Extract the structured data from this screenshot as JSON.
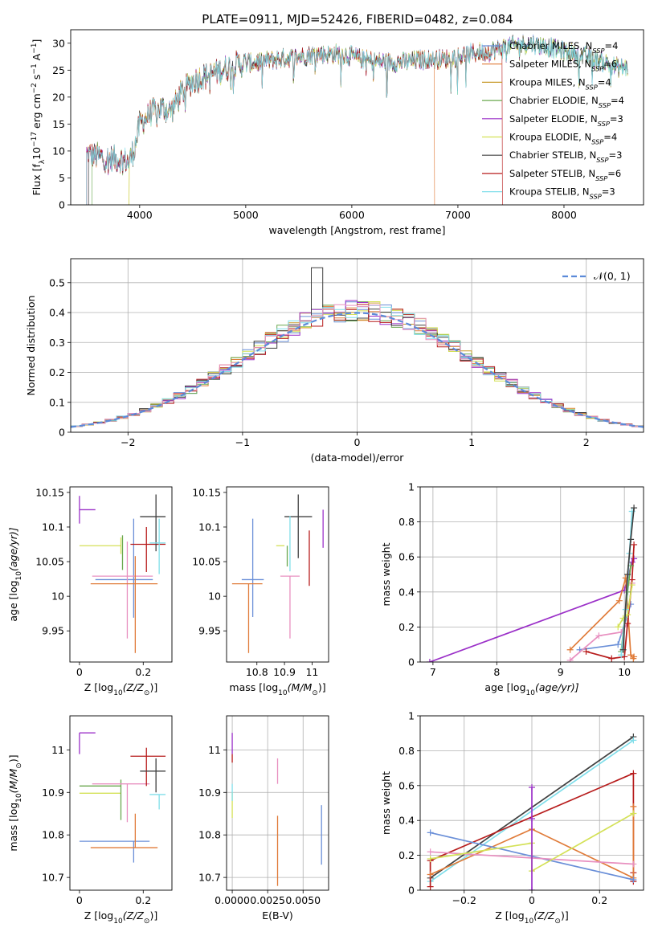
{
  "figure_title": "PLATE=0911, MJD=52426, FIBERID=0482, z=0.084",
  "colors": {
    "chabrier_miles": "#6a8fd8",
    "salpeter_miles": "#e07b39",
    "kroupa_miles": "#c89a2a",
    "chabrier_elodie": "#6aa84f",
    "salpeter_elodie": "#9b30c8",
    "kroupa_elodie": "#d4e157",
    "chabrier_stelib": "#404040",
    "salpeter_stelib": "#b71c1c",
    "kroupa_stelib": "#80deea",
    "pink": "#e890c0",
    "gaussian": "#5b8ad9",
    "grid": "#b0b0b0"
  },
  "chart_data": [
    {
      "id": "spectrum",
      "type": "line",
      "xlabel": "wavelength [Angstrom, rest frame]",
      "ylabel": "Flux [f",
      "ylabel_parts": [
        "Flux [f",
        "λ",
        "10",
        "−17",
        " erg cm",
        "−2",
        " s",
        "−1",
        " A",
        "−1",
        "]"
      ],
      "xlim": [
        3350,
        8750
      ],
      "ylim": [
        0,
        32.5
      ],
      "xticks": [
        4000,
        5000,
        6000,
        7000,
        8000
      ],
      "yticks": [
        0,
        5,
        10,
        15,
        20,
        25,
        30
      ],
      "grid": false,
      "legend_position": "upper-right",
      "legend": [
        {
          "label": "Chabrier MILES, N",
          "sub": "SSP",
          "tail": "=4",
          "color": "#6a8fd8"
        },
        {
          "label": "Salpeter MILES, N",
          "sub": "SSP",
          "tail": "=6",
          "color": "#e07b39"
        },
        {
          "label": "Kroupa MILES, N",
          "sub": "SSP",
          "tail": "=4",
          "color": "#c89a2a"
        },
        {
          "label": "Chabrier ELODIE, N",
          "sub": "SSP",
          "tail": "=4",
          "color": "#6aa84f"
        },
        {
          "label": "Salpeter ELODIE, N",
          "sub": "SSP",
          "tail": "=3",
          "color": "#9b30c8"
        },
        {
          "label": "Kroupa ELODIE, N",
          "sub": "SSP",
          "tail": "=4",
          "color": "#d4e157"
        },
        {
          "label": "Chabrier STELIB, N",
          "sub": "SSP",
          "tail": "=3",
          "color": "#404040"
        },
        {
          "label": "Salpeter STELIB, N",
          "sub": "SSP",
          "tail": "=6",
          "color": "#b71c1c"
        },
        {
          "label": "Kroupa STELIB, N",
          "sub": "SSP",
          "tail": "=3",
          "color": "#80deea"
        }
      ],
      "continuum": {
        "x": [
          3500,
          3600,
          3700,
          3800,
          3900,
          3950,
          4000,
          4100,
          4200,
          4300,
          4400,
          4500,
          4700,
          4900,
          5100,
          5300,
          5500,
          5700,
          5900,
          6100,
          6300,
          6500,
          6700,
          6900,
          7100,
          7300,
          7500,
          7700,
          7900,
          8100,
          8300,
          8500
        ],
        "y": [
          9.5,
          9.0,
          8.5,
          8.5,
          8.0,
          10.5,
          15.0,
          17.0,
          18.0,
          17.5,
          21.0,
          23.0,
          24.5,
          26.0,
          26.5,
          27.0,
          27.5,
          28.0,
          28.0,
          27.0,
          26.5,
          26.5,
          27.0,
          27.0,
          28.0,
          28.5,
          29.5,
          30.0,
          29.0,
          28.0,
          27.0,
          25.5
        ]
      }
    },
    {
      "id": "residuals",
      "type": "step",
      "xlabel": "(data-model)/error",
      "ylabel": "Normed distribution",
      "xlim": [
        -2.5,
        2.5
      ],
      "ylim": [
        0,
        0.58
      ],
      "xticks": [
        -2,
        -1,
        0,
        1,
        2
      ],
      "yticks": [
        0.0,
        0.1,
        0.2,
        0.3,
        0.4,
        0.5
      ],
      "grid": true,
      "legend_position": "upper-right",
      "legend": [
        {
          "label": "𝒩(0, 1)",
          "style": "dashed"
        }
      ],
      "bin_width": 0.1,
      "peak_bin": {
        "x": -0.35,
        "y": 0.55
      }
    },
    {
      "id": "age_vs_Z",
      "type": "errorbar",
      "xlabel": "Z [log",
      "xlabel_parts": [
        "Z [log",
        "10",
        "(Z/Z",
        "⊙",
        ")]"
      ],
      "ylabel_parts": [
        "age  [log",
        "10",
        "(age/yr)]"
      ],
      "xlim": [
        -0.03,
        0.29
      ],
      "ylim": [
        9.905,
        10.158
      ],
      "xticks": [
        0.0,
        0.2
      ],
      "yticks": [
        9.95,
        10.0,
        10.05,
        10.1,
        10.15
      ],
      "points": [
        {
          "x": 0.0,
          "y": 10.125,
          "xerr": [
            0.0,
            0.05
          ],
          "yerr": [
            0.02,
            0.02
          ],
          "color": "#9b30c8"
        },
        {
          "x": 0.13,
          "y": 10.073,
          "xerr": [
            0.13,
            0.0
          ],
          "yerr": [
            0.012,
            0.012
          ],
          "color": "#d4e157"
        },
        {
          "x": 0.135,
          "y": 10.073,
          "xerr": [
            0.0,
            0.0
          ],
          "yerr": [
            0.035,
            0.015
          ],
          "color": "#6aa84f"
        },
        {
          "x": 0.17,
          "y": 10.024,
          "xerr": [
            0.12,
            0.06
          ],
          "yerr": [
            0.055,
            0.088
          ],
          "color": "#6a8fd8"
        },
        {
          "x": 0.15,
          "y": 10.029,
          "xerr": [
            0.11,
            0.08
          ],
          "yerr": [
            0.09,
            0.05
          ],
          "color": "#e890c0"
        },
        {
          "x": 0.175,
          "y": 10.018,
          "xerr": [
            0.14,
            0.07
          ],
          "yerr": [
            0.1,
            0.04
          ],
          "color": "#e07b39"
        },
        {
          "x": 0.21,
          "y": 10.075,
          "xerr": [
            0.05,
            0.06
          ],
          "yerr": [
            0.04,
            0.025
          ],
          "color": "#b71c1c"
        },
        {
          "x": 0.24,
          "y": 10.115,
          "xerr": [
            0.05,
            0.03
          ],
          "yerr": [
            0.05,
            0.032
          ],
          "color": "#404040"
        },
        {
          "x": 0.25,
          "y": 10.077,
          "xerr": [
            0.03,
            0.02
          ],
          "yerr": [
            0.045,
            0.035
          ],
          "color": "#80deea"
        }
      ]
    },
    {
      "id": "age_vs_mass",
      "type": "errorbar",
      "xlabel_parts": [
        "mass [log",
        "10",
        "(M/M",
        "⊙",
        ")]"
      ],
      "xlim": [
        10.69,
        11.06
      ],
      "ylim": [
        9.905,
        10.158
      ],
      "xticks": [
        10.8,
        10.9,
        11.0
      ],
      "yticks": [
        9.95,
        10.0,
        10.05,
        10.1,
        10.15
      ],
      "points": [
        {
          "x": 11.04,
          "y": 10.125,
          "xerr": [
            0.0,
            0.0
          ],
          "yerr": [
            0.055,
            0.0
          ],
          "color": "#9b30c8"
        },
        {
          "x": 10.895,
          "y": 10.073,
          "xerr": [
            0.025,
            0.005
          ],
          "yerr": [
            0.0,
            0.0
          ],
          "color": "#d4e157"
        },
        {
          "x": 10.91,
          "y": 10.073,
          "xerr": [
            0.0,
            0.0
          ],
          "yerr": [
            0.03,
            0.0
          ],
          "color": "#6aa84f"
        },
        {
          "x": 10.785,
          "y": 10.024,
          "xerr": [
            0.04,
            0.04
          ],
          "yerr": [
            0.054,
            0.088
          ],
          "color": "#6a8fd8"
        },
        {
          "x": 10.92,
          "y": 10.029,
          "xerr": [
            0.035,
            0.035
          ],
          "yerr": [
            0.09,
            0.0
          ],
          "color": "#e890c0"
        },
        {
          "x": 10.77,
          "y": 10.018,
          "xerr": [
            0.06,
            0.05
          ],
          "yerr": [
            0.1,
            0.0
          ],
          "color": "#e07b39"
        },
        {
          "x": 10.99,
          "y": 10.075,
          "xerr": [
            0.0,
            0.0
          ],
          "yerr": [
            0.06,
            0.02
          ],
          "color": "#b71c1c"
        },
        {
          "x": 10.95,
          "y": 10.115,
          "xerr": [
            0.05,
            0.05
          ],
          "yerr": [
            0.06,
            0.032
          ],
          "color": "#404040"
        },
        {
          "x": 10.92,
          "y": 10.081,
          "xerr": [
            0.0,
            0.0
          ],
          "yerr": [
            0.045,
            0.035
          ],
          "color": "#80deea"
        }
      ]
    },
    {
      "id": "mass_weight_vs_age",
      "type": "line",
      "xlabel_parts": [
        "age  [log",
        "10",
        "(age/yr)]"
      ],
      "ylabel": "mass weight",
      "xlim": [
        6.8,
        10.3
      ],
      "ylim": [
        0.0,
        1.0
      ],
      "xticks": [
        7,
        8,
        9,
        10
      ],
      "yticks": [
        0.0,
        0.2,
        0.4,
        0.6,
        0.8,
        1.0
      ],
      "grid": true,
      "series": [
        {
          "color": "#9b30c8",
          "x": [
            6.95,
            10.0,
            10.12,
            10.15
          ],
          "y": [
            0.0,
            0.41,
            0.57,
            0.59
          ]
        },
        {
          "color": "#e07b39",
          "x": [
            9.15,
            9.92,
            10.02,
            10.1,
            10.14,
            10.15
          ],
          "y": [
            0.07,
            0.35,
            0.48,
            0.04,
            0.02,
            0.03
          ]
        },
        {
          "color": "#6a8fd8",
          "x": [
            9.3,
            9.9,
            10.1
          ],
          "y": [
            0.07,
            0.1,
            0.33
          ]
        },
        {
          "color": "#e890c0",
          "x": [
            9.15,
            9.6,
            9.95,
            10.05,
            10.12
          ],
          "y": [
            0.01,
            0.15,
            0.17,
            0.22,
            0.45
          ]
        },
        {
          "color": "#b71c1c",
          "x": [
            9.4,
            9.8,
            10.0,
            10.05,
            10.12,
            10.15
          ],
          "y": [
            0.06,
            0.02,
            0.03,
            0.22,
            0.47,
            0.67
          ]
        },
        {
          "color": "#d4e157",
          "x": [
            9.9,
            9.98,
            10.05,
            10.12
          ],
          "y": [
            0.2,
            0.25,
            0.27,
            0.44
          ]
        },
        {
          "color": "#6aa84f",
          "x": [
            9.95,
            10.05,
            10.1
          ],
          "y": [
            0.06,
            0.4,
            0.55
          ]
        },
        {
          "color": "#80deea",
          "x": [
            9.95,
            10.02,
            10.08,
            10.12
          ],
          "y": [
            0.04,
            0.3,
            0.62,
            0.86
          ]
        },
        {
          "color": "#404040",
          "x": [
            9.98,
            10.05,
            10.1,
            10.15
          ],
          "y": [
            0.07,
            0.5,
            0.7,
            0.88
          ]
        }
      ]
    },
    {
      "id": "mass_vs_Z",
      "type": "errorbar",
      "xlabel_parts": [
        "Z [log",
        "10",
        "(Z/Z",
        "⊙",
        ")]"
      ],
      "ylabel_parts": [
        "mass [log",
        "10",
        "(M/M",
        "⊙",
        ")]"
      ],
      "xlim": [
        -0.03,
        0.29
      ],
      "ylim": [
        10.67,
        11.08
      ],
      "xticks": [
        0.0,
        0.2
      ],
      "yticks": [
        10.7,
        10.8,
        10.9,
        11.0
      ],
      "points": [
        {
          "x": 0.0,
          "y": 11.04,
          "xerr": [
            0.0,
            0.05
          ],
          "yerr": [
            0.05,
            0.0
          ],
          "color": "#9b30c8"
        },
        {
          "x": 0.13,
          "y": 10.898,
          "xerr": [
            0.13,
            0.0
          ],
          "yerr": [
            0.0,
            0.0
          ],
          "color": "#d4e157"
        },
        {
          "x": 0.13,
          "y": 10.915,
          "xerr": [
            0.13,
            0.0
          ],
          "yerr": [
            0.08,
            0.015
          ],
          "color": "#6aa84f"
        },
        {
          "x": 0.17,
          "y": 10.785,
          "xerr": [
            0.17,
            0.05
          ],
          "yerr": [
            0.05,
            0.0
          ],
          "color": "#6a8fd8"
        },
        {
          "x": 0.15,
          "y": 10.92,
          "xerr": [
            0.11,
            0.07
          ],
          "yerr": [
            0.09,
            0.0
          ],
          "color": "#e890c0"
        },
        {
          "x": 0.175,
          "y": 10.77,
          "xerr": [
            0.14,
            0.07
          ],
          "yerr": [
            0.0,
            0.08
          ],
          "color": "#e07b39"
        },
        {
          "x": 0.21,
          "y": 10.985,
          "xerr": [
            0.05,
            0.06
          ],
          "yerr": [
            0.07,
            0.02
          ],
          "color": "#b71c1c"
        },
        {
          "x": 0.24,
          "y": 10.95,
          "xerr": [
            0.05,
            0.03
          ],
          "yerr": [
            0.05,
            0.03
          ],
          "color": "#404040"
        },
        {
          "x": 0.25,
          "y": 10.895,
          "xerr": [
            0.03,
            0.02
          ],
          "yerr": [
            0.035,
            0.0
          ],
          "color": "#80deea"
        }
      ]
    },
    {
      "id": "mass_vs_EBV",
      "type": "errorbar",
      "xlabel": "E(B-V)",
      "xlim": [
        -0.0004,
        0.0068
      ],
      "ylim": [
        10.67,
        11.08
      ],
      "xticks": [
        0.0,
        0.0025,
        0.005
      ],
      "xticklabels": [
        "0.0000",
        "0.0025",
        "0.0050"
      ],
      "yticks": [
        10.7,
        10.8,
        10.9,
        11.0
      ],
      "grid": true,
      "points": [
        {
          "x": 0.0,
          "y": 11.04,
          "yerr": [
            0.05,
            0.0
          ],
          "color": "#9b30c8"
        },
        {
          "x": 0.0,
          "y": 10.99,
          "yerr": [
            0.02,
            0.0
          ],
          "color": "#b71c1c"
        },
        {
          "x": 0.0,
          "y": 10.9,
          "yerr": [
            0.06,
            0.0
          ],
          "color": "#d4e157"
        },
        {
          "x": 0.0,
          "y": 10.88,
          "yerr": [
            0.0,
            0.04
          ],
          "color": "#80deea"
        },
        {
          "x": 0.0032,
          "y": 10.92,
          "yerr": [
            0.0,
            0.06
          ],
          "color": "#e890c0"
        },
        {
          "x": 0.0032,
          "y": 10.76,
          "yerr": [
            0.08,
            0.085
          ],
          "color": "#e07b39"
        },
        {
          "x": 0.0063,
          "y": 10.8,
          "yerr": [
            0.07,
            0.07
          ],
          "color": "#6a8fd8"
        }
      ]
    },
    {
      "id": "mass_weight_vs_Z",
      "type": "line",
      "xlabel_parts": [
        "Z [log",
        "10",
        "(Z/Z",
        "⊙",
        ")]"
      ],
      "ylabel": "mass weight",
      "xlim": [
        -0.33,
        0.33
      ],
      "ylim": [
        0.0,
        1.0
      ],
      "xticks": [
        -0.2,
        0.0,
        0.2
      ],
      "yticks": [
        0.0,
        0.2,
        0.4,
        0.6,
        0.8,
        1.0
      ],
      "grid": true,
      "series": [
        {
          "color": "#404040",
          "x": [
            -0.3,
            0.3
          ],
          "y": [
            0.07,
            0.88
          ]
        },
        {
          "color": "#80deea",
          "x": [
            -0.3,
            0.3
          ],
          "y": [
            0.05,
            0.86
          ]
        },
        {
          "color": "#b71c1c",
          "x": [
            -0.3,
            -0.3,
            0.3,
            0.3,
            0.3
          ],
          "y": [
            0.02,
            0.17,
            0.67,
            0.1,
            0.05
          ]
        },
        {
          "color": "#e07b39",
          "x": [
            -0.3,
            0.0,
            0.3,
            0.3
          ],
          "y": [
            0.09,
            0.35,
            0.07,
            0.48
          ]
        },
        {
          "color": "#6a8fd8",
          "x": [
            -0.3,
            0.3
          ],
          "y": [
            0.33,
            0.06
          ]
        },
        {
          "color": "#e890c0",
          "x": [
            -0.3,
            0.3
          ],
          "y": [
            0.22,
            0.15
          ]
        },
        {
          "color": "#d4e157",
          "x": [
            -0.3,
            0.0,
            0.0,
            0.3
          ],
          "y": [
            0.18,
            0.27,
            0.11,
            0.44
          ]
        },
        {
          "color": "#9b30c8",
          "x": [
            0.0,
            0.0,
            0.0
          ],
          "y": [
            0.0,
            0.41,
            0.59
          ]
        }
      ]
    }
  ]
}
